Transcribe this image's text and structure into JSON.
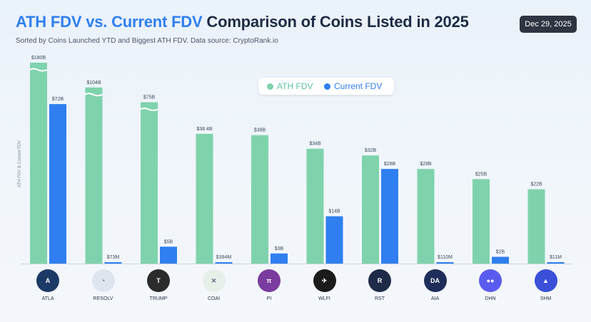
{
  "header": {
    "title_part1": "ATH FDV vs. Current FDV",
    "title_part2": "Comparison of Coins Listed in 2025",
    "subtitle": "Sorted by Coins Launched YTD and Biggest ATH FDV. Data source: CryptoRank.io",
    "date": "Dec 29, 2025"
  },
  "legend": {
    "ath": "ATH FDV",
    "current": "Current FDV"
  },
  "colors": {
    "ath": "#7fd3ac",
    "current": "#2f7ff0"
  },
  "chart_data": {
    "type": "bar",
    "title": "ATH FDV vs. Current FDV Comparison of Coins Listed in 2025",
    "subtitle": "Sorted by Coins Launched YTD and Biggest ATH FDV. Data source: CryptoRank.io",
    "xlabel": "",
    "ylabel": "ATH FDV & Current FDV",
    "categories": [
      "ATLA",
      "RESOLV",
      "TRUMP",
      "COAI",
      "PI",
      "WLFI",
      "RST",
      "AIA",
      "DHN",
      "SHM"
    ],
    "series": [
      {
        "name": "ATH FDV",
        "values": [
          180,
          104,
          75,
          38.4,
          38,
          34,
          32,
          28,
          25,
          22
        ],
        "labels": [
          "$180B",
          "$104B",
          "$75B",
          "$38.4B",
          "$38B",
          "$34B",
          "$32B",
          "$28B",
          "$25B",
          "$22B"
        ]
      },
      {
        "name": "Current FDV",
        "values": [
          72,
          0.073,
          5,
          0.394,
          3,
          14,
          28,
          0.11,
          2,
          0.011
        ],
        "labels": [
          "$72B",
          "$73M",
          "$5B",
          "$394M",
          "$3B",
          "$14B",
          "$28B",
          "$110M",
          "$2B",
          "$11M"
        ]
      }
    ],
    "axis_break": "ATH bars for ATLA, RESOLV and TRUMP are truncated (broken axis)",
    "units": "USD",
    "grid": false,
    "legend_position": "top-center"
  },
  "coins": [
    {
      "name": "ATLA",
      "icon": "atla-logo-icon",
      "bg": "#1c3a66",
      "glyph": "A"
    },
    {
      "name": "RESOLV",
      "icon": "resolv-logo-icon",
      "bg": "#dfe5ee",
      "glyph": "◔"
    },
    {
      "name": "TRUMP",
      "icon": "trump-logo-icon",
      "bg": "#2b2b2b",
      "glyph": "T"
    },
    {
      "name": "COAI",
      "icon": "coai-logo-icon",
      "bg": "#e6efe8",
      "glyph": "✕"
    },
    {
      "name": "PI",
      "icon": "pi-logo-icon",
      "bg": "#7a3c9e",
      "glyph": "π"
    },
    {
      "name": "WLFI",
      "icon": "wlfi-logo-icon",
      "bg": "#1b1b1b",
      "glyph": "✈"
    },
    {
      "name": "RST",
      "icon": "rst-logo-icon",
      "bg": "#1e2a48",
      "glyph": "R"
    },
    {
      "name": "AIA",
      "icon": "aia-logo-icon",
      "bg": "#1f2d5a",
      "glyph": "DA"
    },
    {
      "name": "DHN",
      "icon": "dhn-logo-icon",
      "bg": "#5a5cf0",
      "glyph": "●●"
    },
    {
      "name": "SHM",
      "icon": "shm-logo-icon",
      "bg": "#3b4fd8",
      "glyph": "▲"
    }
  ]
}
